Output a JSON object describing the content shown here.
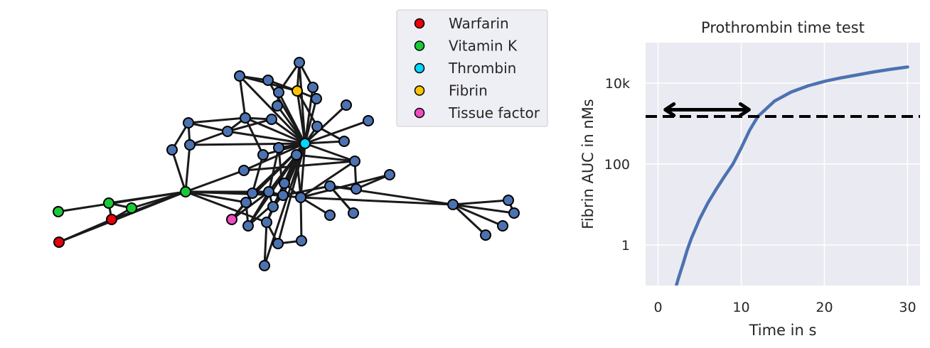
{
  "legend": {
    "placement": "top-right of network panel",
    "items": [
      {
        "label": "Warfarin",
        "color": "#e8000b"
      },
      {
        "label": "Vitamin K",
        "color": "#1ac938"
      },
      {
        "label": "Thrombin",
        "color": "#00d7ff"
      },
      {
        "label": "Fibrin",
        "color": "#ffc400"
      },
      {
        "label": "Tissue factor",
        "color": "#f14cc1"
      }
    ]
  },
  "chart_data": [
    {
      "type": "network",
      "node_default_color": "#4c72b0",
      "edge_color": "#1a1a1a",
      "node_edge_color": "#000000",
      "grid": false,
      "axes_visible": false
    },
    {
      "type": "line",
      "title": "Prothrombin time test",
      "xlabel": "Time in s",
      "ylabel": "Fibrin AUC in nMs",
      "xlim": [
        -1.5,
        31.5
      ],
      "x_ticks": [
        0,
        10,
        20,
        30
      ],
      "x_tick_labels": [
        "0",
        "10",
        "20",
        "30"
      ],
      "yscale": "log",
      "ylim": [
        0.1,
        100000
      ],
      "y_ticks": [
        1,
        100,
        10000
      ],
      "y_tick_labels": [
        "1",
        "100",
        "10k"
      ],
      "grid": true,
      "background": "#eaeaf2",
      "series": [
        {
          "color": "#4c72b0",
          "x": [
            2.2,
            2.4,
            2.7,
            3,
            3.5,
            4,
            5,
            6,
            7,
            8,
            9,
            10,
            11,
            12,
            14,
            16,
            18,
            20,
            22,
            24,
            26,
            28,
            30
          ],
          "y": [
            0.1,
            0.14,
            0.22,
            0.34,
            0.75,
            1.45,
            4.4,
            11,
            24,
            50,
            100,
            250,
            680,
            1500,
            3600,
            6000,
            8500,
            11000,
            13500,
            16000,
            19000,
            22000,
            25000
          ]
        }
      ],
      "threshold": {
        "y": 1500,
        "style": "dashed",
        "color": "#000000"
      },
      "arrow": {
        "x_start": 0.7,
        "x_end": 11.1,
        "y": 2200,
        "style": "double-headed",
        "color": "#000000"
      }
    }
  ]
}
